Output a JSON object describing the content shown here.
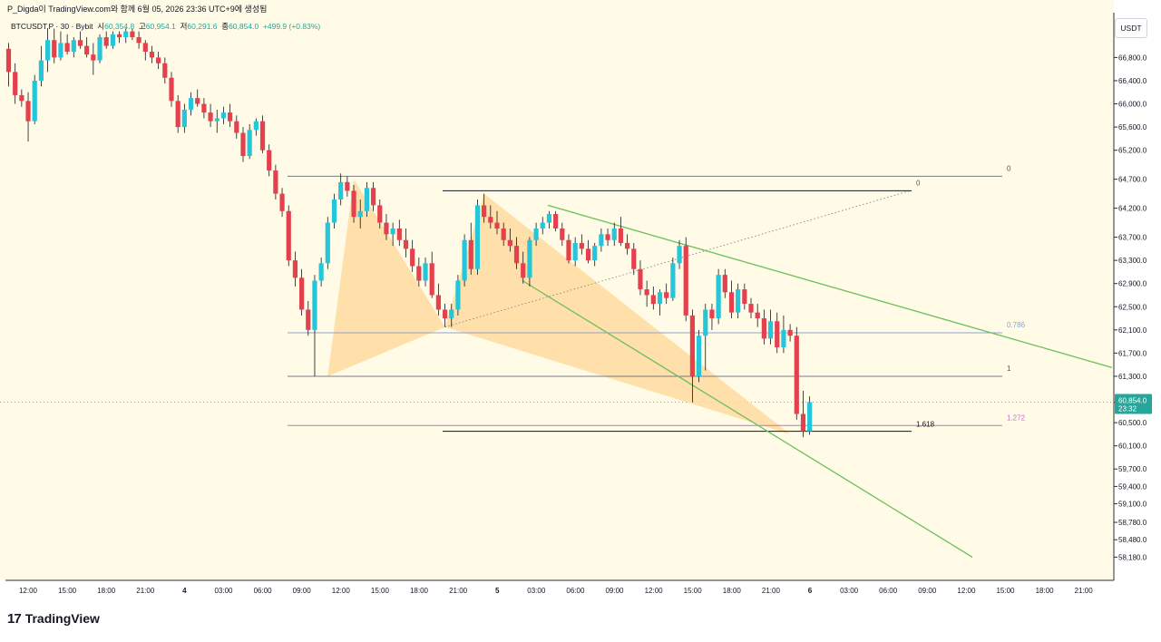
{
  "header": {
    "publisher_line": "P_Digda이 TradingView.com와 함께 6월 05, 2026 23:36 UTC+9에 생성됨"
  },
  "legend": {
    "symbol": "BTCUSDT.P · 30 · Bybit",
    "open_label": "시",
    "open": "60,354.8",
    "high_label": "고",
    "high": "60,954.1",
    "low_label": "저",
    "low": "60,291.6",
    "close_label": "종",
    "close": "60,854.0",
    "change": "+499.9 (+0.83%)"
  },
  "price_unit": "USDT",
  "price_tag": {
    "value": "60,854.0",
    "countdown": "23:32",
    "color": "#26a69a"
  },
  "branding": {
    "name": "TradingView",
    "mark": "17"
  },
  "colors": {
    "up": "#26c6da",
    "down": "#e5404e",
    "background": "#fffbe6",
    "pattern_fill": "#ffd89b",
    "trendline": "#6abf5e"
  },
  "chart_data": {
    "type": "candlestick",
    "ylim": [
      58100,
      67300
    ],
    "y_ticks": [
      "66,800.0",
      "66,400.0",
      "66,000.0",
      "65,600.0",
      "65,200.0",
      "64,700.0",
      "64,200.0",
      "63,700.0",
      "63,300.0",
      "62,900.0",
      "62,500.0",
      "62,100.0",
      "61,700.0",
      "61,300.0",
      "60,850.0",
      "60,500.0",
      "60,100.0",
      "59,700.0",
      "59,400.0",
      "59,100.0",
      "58,780.0",
      "58,480.0",
      "58,180.0"
    ],
    "x_ticks": [
      "12:00",
      "15:00",
      "18:00",
      "21:00",
      "4",
      "03:00",
      "06:00",
      "09:00",
      "12:00",
      "15:00",
      "18:00",
      "21:00",
      "5",
      "03:00",
      "06:00",
      "09:00",
      "12:00",
      "15:00",
      "18:00",
      "21:00",
      "6",
      "03:00",
      "06:00",
      "09:00",
      "12:00",
      "15:00",
      "18:00",
      "21:00"
    ],
    "candles": [
      [
        66950,
        67050,
        66300,
        66550
      ],
      [
        66550,
        66700,
        66000,
        66150
      ],
      [
        66150,
        66250,
        65950,
        66050
      ],
      [
        66050,
        66200,
        65350,
        65700
      ],
      [
        65700,
        66500,
        65650,
        66400
      ],
      [
        66400,
        67000,
        66300,
        66750
      ],
      [
        66750,
        67300,
        66550,
        67100
      ],
      [
        67100,
        67300,
        66700,
        66800
      ],
      [
        66800,
        67250,
        66750,
        67050
      ],
      [
        67050,
        67200,
        66850,
        66900
      ],
      [
        66900,
        67150,
        66800,
        67100
      ],
      [
        67100,
        67250,
        66950,
        67000
      ],
      [
        67000,
        67150,
        66800,
        66850
      ],
      [
        66850,
        67050,
        66500,
        66750
      ],
      [
        66750,
        67200,
        66700,
        67150
      ],
      [
        67150,
        67250,
        66950,
        67000
      ],
      [
        67000,
        67250,
        66950,
        67200
      ],
      [
        67200,
        67250,
        67050,
        67150
      ],
      [
        67150,
        67300,
        67050,
        67250
      ],
      [
        67250,
        67300,
        67100,
        67150
      ],
      [
        67150,
        67250,
        66950,
        67050
      ],
      [
        67050,
        67100,
        66750,
        66900
      ],
      [
        66900,
        67000,
        66700,
        66800
      ],
      [
        66800,
        66900,
        66600,
        66700
      ],
      [
        66700,
        66800,
        66350,
        66450
      ],
      [
        66450,
        66550,
        65950,
        66050
      ],
      [
        66050,
        66150,
        65500,
        65600
      ],
      [
        65600,
        66000,
        65500,
        65900
      ],
      [
        65900,
        66200,
        65800,
        66100
      ],
      [
        66100,
        66250,
        65950,
        66000
      ],
      [
        66000,
        66100,
        65750,
        65850
      ],
      [
        65850,
        66000,
        65600,
        65700
      ],
      [
        65700,
        65900,
        65500,
        65750
      ],
      [
        65750,
        65950,
        65650,
        65850
      ],
      [
        65850,
        66000,
        65600,
        65700
      ],
      [
        65700,
        65800,
        65400,
        65500
      ],
      [
        65500,
        65600,
        65000,
        65100
      ],
      [
        65100,
        65650,
        65050,
        65550
      ],
      [
        65550,
        65750,
        65450,
        65700
      ],
      [
        65700,
        65800,
        65150,
        65200
      ],
      [
        65200,
        65300,
        64750,
        64850
      ],
      [
        64850,
        64950,
        64350,
        64450
      ],
      [
        64450,
        64550,
        64050,
        64150
      ],
      [
        64150,
        64250,
        63200,
        63300
      ],
      [
        63300,
        63450,
        62850,
        63000
      ],
      [
        63000,
        63150,
        62350,
        62450
      ],
      [
        62450,
        62600,
        62000,
        62100
      ],
      [
        62100,
        63050,
        61300,
        62950
      ],
      [
        62950,
        63350,
        62850,
        63250
      ],
      [
        63250,
        64050,
        63150,
        63950
      ],
      [
        63950,
        64450,
        63850,
        64350
      ],
      [
        64350,
        64800,
        64250,
        64650
      ],
      [
        64650,
        64750,
        64400,
        64500
      ],
      [
        64500,
        64600,
        63950,
        64050
      ],
      [
        64050,
        64350,
        63850,
        64150
      ],
      [
        64150,
        64650,
        64050,
        64550
      ],
      [
        64550,
        64650,
        64150,
        64250
      ],
      [
        64250,
        64350,
        63850,
        63950
      ],
      [
        63950,
        64100,
        63650,
        63750
      ],
      [
        63750,
        63950,
        63550,
        63850
      ],
      [
        63850,
        64000,
        63550,
        63650
      ],
      [
        63650,
        63850,
        63350,
        63500
      ],
      [
        63500,
        63650,
        63100,
        63200
      ],
      [
        63200,
        63350,
        62850,
        62950
      ],
      [
        62950,
        63350,
        62850,
        63250
      ],
      [
        63250,
        63450,
        62650,
        62700
      ],
      [
        62700,
        62900,
        62350,
        62450
      ],
      [
        62450,
        62550,
        62150,
        62300
      ],
      [
        62300,
        62550,
        62150,
        62450
      ],
      [
        62450,
        63050,
        62350,
        62950
      ],
      [
        62950,
        63750,
        62850,
        63650
      ],
      [
        63650,
        63950,
        63050,
        63150
      ],
      [
        63150,
        64350,
        63050,
        64250
      ],
      [
        64250,
        64450,
        63950,
        64050
      ],
      [
        64050,
        64250,
        63850,
        63950
      ],
      [
        63950,
        64150,
        63750,
        63850
      ],
      [
        63850,
        63950,
        63550,
        63650
      ],
      [
        63650,
        63850,
        63450,
        63550
      ],
      [
        63550,
        63700,
        63150,
        63250
      ],
      [
        63250,
        63450,
        62900,
        63000
      ],
      [
        63000,
        63700,
        62850,
        63650
      ],
      [
        63650,
        63950,
        63550,
        63850
      ],
      [
        63850,
        64050,
        63750,
        63950
      ],
      [
        63950,
        64150,
        63850,
        64100
      ],
      [
        64100,
        64150,
        63800,
        63850
      ],
      [
        63850,
        63950,
        63550,
        63650
      ],
      [
        63650,
        63750,
        63250,
        63300
      ],
      [
        63300,
        63700,
        63200,
        63600
      ],
      [
        63600,
        63750,
        63400,
        63500
      ],
      [
        63500,
        63650,
        63250,
        63300
      ],
      [
        63300,
        63600,
        63200,
        63550
      ],
      [
        63550,
        63850,
        63450,
        63750
      ],
      [
        63750,
        63850,
        63550,
        63650
      ],
      [
        63650,
        63950,
        63550,
        63850
      ],
      [
        63850,
        64050,
        63550,
        63600
      ],
      [
        63600,
        63750,
        63400,
        63500
      ],
      [
        63500,
        63600,
        63050,
        63150
      ],
      [
        63150,
        63300,
        62700,
        62800
      ],
      [
        62800,
        62950,
        62500,
        62700
      ],
      [
        62700,
        62850,
        62450,
        62550
      ],
      [
        62550,
        62800,
        62350,
        62750
      ],
      [
        62750,
        62900,
        62550,
        62650
      ],
      [
        62650,
        63350,
        62600,
        63250
      ],
      [
        63250,
        63650,
        63150,
        63550
      ],
      [
        63550,
        63700,
        62250,
        62350
      ],
      [
        62350,
        62450,
        60850,
        61300
      ],
      [
        61300,
        62100,
        61200,
        62000
      ],
      [
        62000,
        62550,
        61400,
        62450
      ],
      [
        62450,
        62550,
        62100,
        62300
      ],
      [
        62300,
        63150,
        62200,
        63050
      ],
      [
        63050,
        63150,
        62650,
        62750
      ],
      [
        62750,
        62950,
        62300,
        62400
      ],
      [
        62400,
        62900,
        62300,
        62800
      ],
      [
        62800,
        62900,
        62450,
        62550
      ],
      [
        62550,
        62650,
        62300,
        62400
      ],
      [
        62400,
        62550,
        62150,
        62300
      ],
      [
        62300,
        62450,
        61850,
        61950
      ],
      [
        61950,
        62450,
        61850,
        62250
      ],
      [
        62250,
        62400,
        61700,
        61800
      ],
      [
        61800,
        62350,
        61700,
        62100
      ],
      [
        62100,
        62200,
        61900,
        62000
      ],
      [
        62000,
        62150,
        60550,
        60650
      ],
      [
        60650,
        61050,
        60250,
        60350
      ],
      [
        60350,
        60954,
        60291,
        60854
      ]
    ],
    "annotations": {
      "fib_left": [
        "0",
        "0.786",
        "1",
        "1.272"
      ],
      "fib_right": [
        "0",
        "1.618"
      ]
    }
  }
}
